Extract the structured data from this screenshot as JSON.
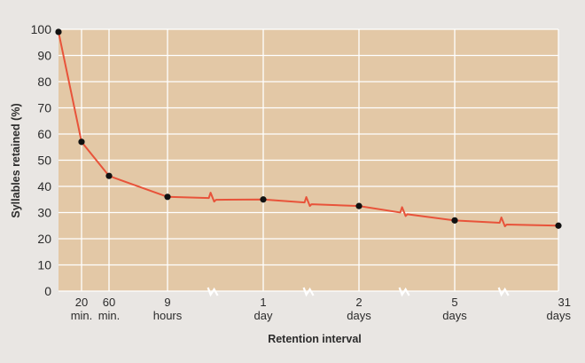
{
  "chart_data": {
    "type": "line",
    "title": "",
    "xlabel": "Retention interval",
    "ylabel": "Syllables retained (%)",
    "ylim": [
      0,
      100
    ],
    "yticks": [
      "0",
      "10",
      "20",
      "30",
      "40",
      "50",
      "60",
      "70",
      "80",
      "90",
      "100"
    ],
    "grid": true,
    "x_axis_breaks": true,
    "colors": {
      "plot_background": "#e3c8a6",
      "grid": "#ffffff",
      "line": "#e8533a",
      "point": "#111111",
      "page_background": "#e9e6e3"
    },
    "categories": [
      {
        "line1": "",
        "line2": ""
      },
      {
        "line1": "20",
        "line2": "min."
      },
      {
        "line1": "60",
        "line2": "min."
      },
      {
        "line1": "9",
        "line2": "hours"
      },
      {
        "line1": "1",
        "line2": "day"
      },
      {
        "line1": "2",
        "line2": "days"
      },
      {
        "line1": "5",
        "line2": "days"
      },
      {
        "line1": "31",
        "line2": "days"
      }
    ],
    "series": [
      {
        "values": [
          99,
          57,
          44,
          36,
          35,
          32.5,
          27,
          25
        ]
      }
    ]
  }
}
